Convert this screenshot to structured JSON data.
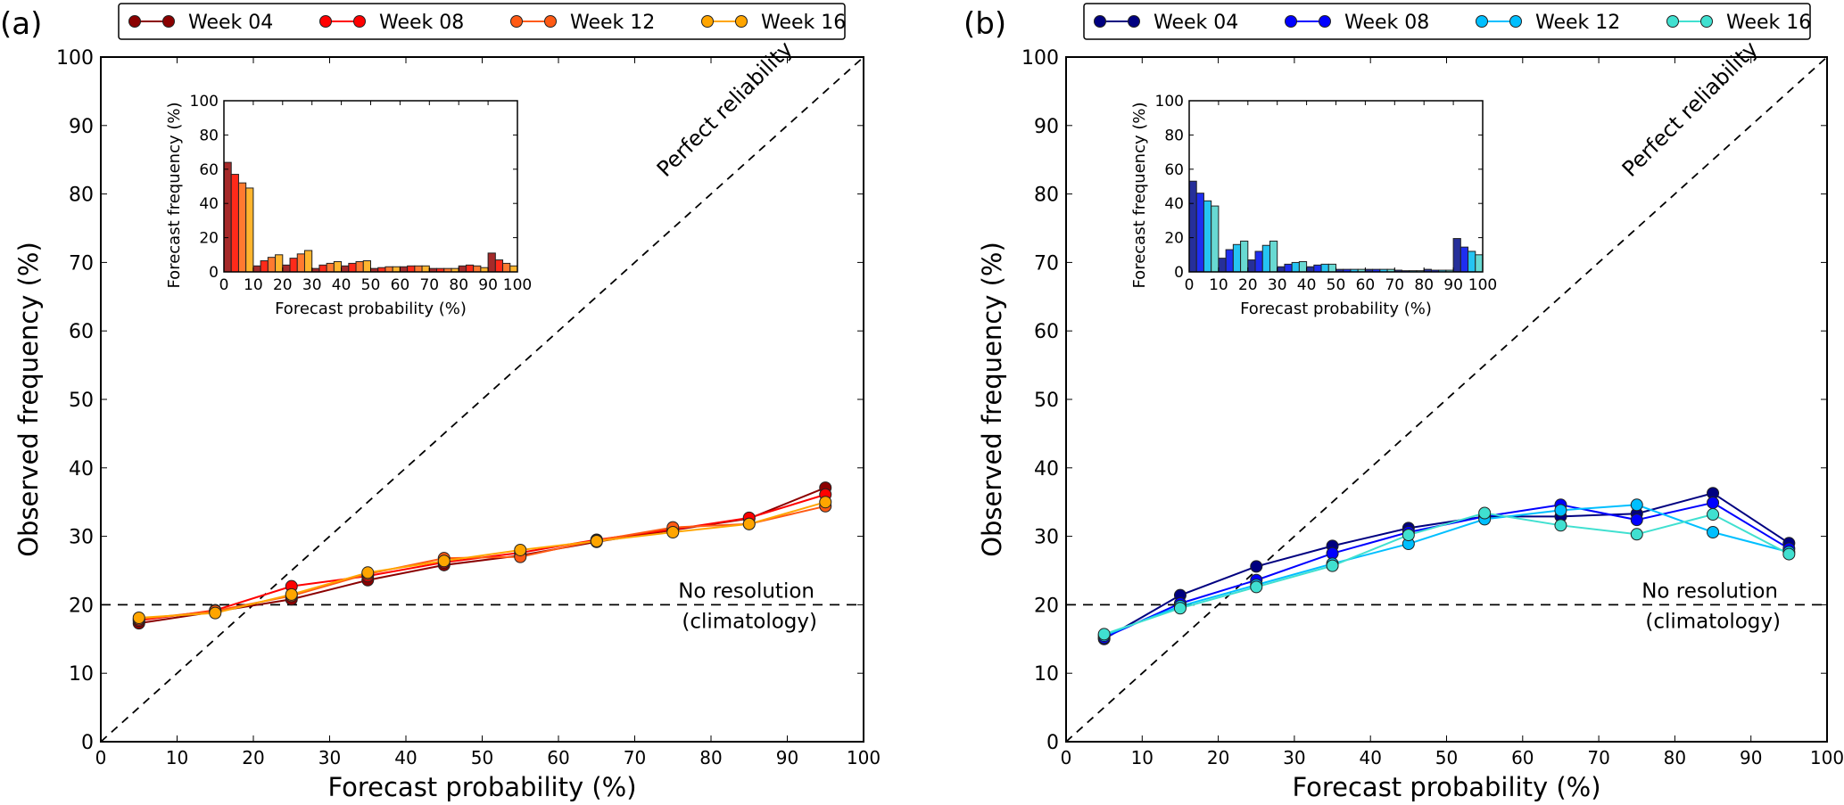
{
  "chart_data": [
    {
      "panel_label": "(a)",
      "type": "line",
      "xlabel": "Forecast probability (%)",
      "ylabel": "Observed frequency (%)",
      "xlim": [
        0,
        100
      ],
      "ylim": [
        0,
        100
      ],
      "x_ticks": [
        "0",
        "10",
        "20",
        "30",
        "40",
        "50",
        "60",
        "70",
        "80",
        "90",
        "100"
      ],
      "y_ticks": [
        "0",
        "10",
        "20",
        "30",
        "40",
        "50",
        "60",
        "70",
        "80",
        "90",
        "100"
      ],
      "grid": false,
      "legend_position": "top",
      "x": [
        5,
        15,
        25,
        35,
        45,
        55,
        65,
        75,
        85,
        95
      ],
      "series": [
        {
          "name": "Week 04",
          "color": "#8b0000",
          "values": [
            17.3,
            19.0,
            20.8,
            23.6,
            25.8,
            27.2,
            29.2,
            30.9,
            32.6,
            37.1
          ]
        },
        {
          "name": "Week 08",
          "color": "#ff0000",
          "values": [
            17.7,
            19.2,
            22.7,
            24.2,
            26.2,
            27.6,
            29.5,
            31.0,
            32.7,
            36.1
          ]
        },
        {
          "name": "Week 12",
          "color": "#ff5a14",
          "values": [
            17.9,
            19.1,
            21.3,
            24.5,
            26.8,
            27.0,
            29.4,
            31.3,
            31.8,
            34.4
          ]
        },
        {
          "name": "Week 16",
          "color": "#ffa500",
          "values": [
            18.1,
            18.8,
            21.5,
            24.7,
            26.4,
            28.0,
            29.3,
            30.6,
            31.8,
            35.0
          ]
        }
      ],
      "reference_lines": [
        {
          "label": "Perfect reliability",
          "from": [
            0,
            0
          ],
          "to": [
            100,
            100
          ]
        },
        {
          "label": "No resolution",
          "label2": "(climatology)",
          "y": 20
        }
      ],
      "inset": {
        "type": "bar",
        "xlabel": "Forecast probability (%)",
        "ylabel": "Forecast frequency (%)",
        "xlim": [
          0,
          100
        ],
        "ylim": [
          0,
          100
        ],
        "x_ticks": [
          "0",
          "10",
          "20",
          "30",
          "40",
          "50",
          "60",
          "70",
          "80",
          "90",
          "100"
        ],
        "y_ticks": [
          "0",
          "20",
          "40",
          "60",
          "80",
          "100"
        ],
        "bins": [
          0,
          10,
          20,
          30,
          40,
          50,
          60,
          70,
          80,
          90
        ],
        "bin_width": 10,
        "series": [
          {
            "name": "Week 04",
            "color": "#a52a2a",
            "values": [
              64,
              3.5,
              4,
              2,
              3.5,
              2,
              3,
              2,
              3.5,
              11
            ]
          },
          {
            "name": "Week 08",
            "color": "#ff2a1a",
            "values": [
              57,
              6.5,
              8,
              4,
              5,
              2.5,
              3.5,
              2,
              4,
              7
            ]
          },
          {
            "name": "Week 12",
            "color": "#ff7a30",
            "values": [
              52,
              8.5,
              10.5,
              5,
              6,
              3,
              3.5,
              2,
              3.5,
              5
            ]
          },
          {
            "name": "Week 16",
            "color": "#ffb52e",
            "values": [
              49,
              10,
              12.5,
              6,
              6.5,
              3,
              3.5,
              2,
              2.5,
              3.5
            ]
          }
        ]
      }
    },
    {
      "panel_label": "(b)",
      "type": "line",
      "xlabel": "Forecast probability (%)",
      "ylabel": "Observed frequency (%)",
      "xlim": [
        0,
        100
      ],
      "ylim": [
        0,
        100
      ],
      "x_ticks": [
        "0",
        "10",
        "20",
        "30",
        "40",
        "50",
        "60",
        "70",
        "80",
        "90",
        "100"
      ],
      "y_ticks": [
        "0",
        "10",
        "20",
        "30",
        "40",
        "50",
        "60",
        "70",
        "80",
        "90",
        "100"
      ],
      "grid": false,
      "legend_position": "top",
      "x": [
        5,
        15,
        25,
        35,
        45,
        55,
        65,
        75,
        85,
        95
      ],
      "series": [
        {
          "name": "Week 04",
          "color": "#000080",
          "values": [
            15.0,
            21.4,
            25.6,
            28.6,
            31.2,
            32.9,
            32.9,
            33.3,
            36.3,
            29.0
          ]
        },
        {
          "name": "Week 08",
          "color": "#0000ff",
          "values": [
            15.2,
            20.2,
            23.6,
            27.5,
            30.6,
            32.9,
            34.6,
            32.4,
            34.9,
            28.2
          ]
        },
        {
          "name": "Week 12",
          "color": "#00bfff",
          "values": [
            15.5,
            19.8,
            22.9,
            26.0,
            28.9,
            32.5,
            33.8,
            34.6,
            30.6,
            27.7
          ]
        },
        {
          "name": "Week 16",
          "color": "#40e0d0",
          "values": [
            15.7,
            19.5,
            22.6,
            25.7,
            30.2,
            33.4,
            31.6,
            30.3,
            33.2,
            27.4
          ]
        }
      ],
      "reference_lines": [
        {
          "label": "Perfect reliability",
          "from": [
            0,
            0
          ],
          "to": [
            100,
            100
          ]
        },
        {
          "label": "No resolution",
          "label2": "(climatology)",
          "y": 20
        }
      ],
      "inset": {
        "type": "bar",
        "xlabel": "Forecast probability (%)",
        "ylabel": "Forecast frequency (%)",
        "xlim": [
          0,
          100
        ],
        "ylim": [
          0,
          100
        ],
        "x_ticks": [
          "0",
          "10",
          "20",
          "30",
          "40",
          "50",
          "60",
          "70",
          "80",
          "90",
          "100"
        ],
        "y_ticks": [
          "0",
          "20",
          "40",
          "60",
          "80",
          "100"
        ],
        "bins": [
          0,
          10,
          20,
          30,
          40,
          50,
          60,
          70,
          80,
          90
        ],
        "bin_width": 10,
        "series": [
          {
            "name": "Week 04",
            "color": "#262f9a",
            "values": [
              53,
              8,
              7,
              3,
              3,
              1.5,
              1.5,
              1,
              1.5,
              19.5
            ]
          },
          {
            "name": "Week 08",
            "color": "#1f2ef0",
            "values": [
              46,
              13,
              12,
              4.5,
              4,
              1.5,
              1.5,
              0.7,
              1,
              14.5
            ]
          },
          {
            "name": "Week 12",
            "color": "#25c4f2",
            "values": [
              41.5,
              16,
              15.5,
              5.5,
              4.5,
              1.5,
              1.5,
              0.7,
              1,
              12
            ]
          },
          {
            "name": "Week 16",
            "color": "#68d9d2",
            "values": [
              38.5,
              18,
              18,
              6,
              4.5,
              1.5,
              1.5,
              0.7,
              1,
              10
            ]
          }
        ]
      }
    }
  ]
}
